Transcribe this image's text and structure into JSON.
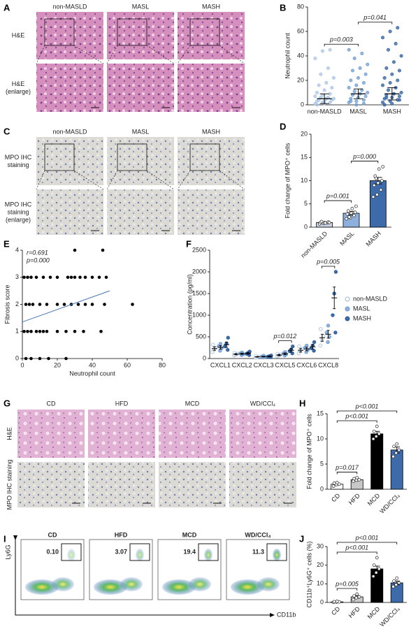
{
  "image_panels": [
    {
      "letter": "A",
      "columns": [
        "non-MASLD",
        "MASL",
        "MASH"
      ],
      "rows": [
        "H&E",
        "H&E (enlarge)"
      ]
    },
    {
      "letter": "C",
      "columns": [
        "non-MASLD",
        "MASL",
        "MASH"
      ],
      "rows": [
        "MPO IHC staining",
        "MPO IHC staining (enlarge)"
      ]
    },
    {
      "letter": "G",
      "columns": [
        "CD",
        "HFD",
        "MCD",
        "WD/CCl₄"
      ],
      "rows": [
        "H&E",
        "MPO IHC staining"
      ]
    },
    {
      "letter": "I",
      "columns": [
        "CD",
        "HFD",
        "MCD",
        "WD/CCl₄"
      ],
      "gate_values": [
        {
          "value": 0.1,
          "label": "0.10"
        },
        3.07,
        19.4,
        11.3
      ],
      "ylabel": "Ly6G",
      "xlabel": "CD11b"
    }
  ],
  "chart_data": [
    {
      "panel": "B",
      "type": "strip",
      "ylabel": "Neutrophil count",
      "categories": [
        "non-MASLD",
        "MASL",
        "MASH"
      ],
      "colors": [
        "#a9c4e4",
        "#6d9bd1",
        "#2f5f9f"
      ],
      "values": [
        5,
        9,
        9
      ],
      "errors": [
        4,
        4,
        5
      ],
      "points": [
        [
          1,
          2,
          2,
          3,
          3,
          4,
          4,
          5,
          5,
          6,
          6,
          7,
          8,
          9,
          10,
          12,
          14,
          16,
          18,
          22,
          25,
          30,
          38,
          44,
          45,
          0,
          1
        ],
        [
          2,
          3,
          4,
          5,
          6,
          7,
          8,
          9,
          10,
          11,
          12,
          14,
          16,
          18,
          20,
          22,
          25,
          28,
          30,
          33,
          38,
          42,
          45,
          0,
          1,
          3
        ],
        [
          2,
          3,
          4,
          5,
          6,
          7,
          8,
          9,
          10,
          12,
          14,
          16,
          18,
          20,
          22,
          25,
          28,
          30,
          35,
          40,
          45,
          50,
          55,
          60,
          63,
          0,
          1,
          4,
          6
        ]
      ],
      "ylim": [
        0,
        80
      ],
      "yticks": [
        0,
        20,
        40,
        60,
        80
      ],
      "comparisons": [
        {
          "pair": [
            0,
            1
          ],
          "label": "p=0.003"
        },
        {
          "pair": [
            1,
            2
          ],
          "label": "p=0.041"
        }
      ]
    },
    {
      "panel": "D",
      "type": "bar",
      "ylabel": "Fold change of MPO⁺ cells",
      "categories": [
        "non-MASLD",
        "MASL",
        "MASH"
      ],
      "colors": [
        "#c9d3e2",
        "#8eb0dc",
        "#3d6aa8"
      ],
      "values": [
        1.0,
        3.0,
        10.0
      ],
      "errors": [
        0.1,
        0.4,
        0.7
      ],
      "points": [
        [
          0.7,
          0.8,
          0.9,
          1.0,
          1.0,
          1.1,
          1.2,
          0.9,
          1.0
        ],
        [
          1.8,
          2.0,
          2.5,
          2.8,
          3.0,
          3.2,
          3.5,
          4.0,
          4.5,
          2.2
        ],
        [
          6.5,
          7.0,
          8.0,
          9.0,
          9.5,
          10.0,
          11.0,
          12.5,
          13.0,
          10.5
        ]
      ],
      "ylim": [
        0,
        20
      ],
      "yticks": [
        0,
        5,
        10,
        15,
        20
      ],
      "comparisons": [
        {
          "pair": [
            0,
            1
          ],
          "label": "p=0.001"
        },
        {
          "pair": [
            1,
            2
          ],
          "label": "p=0.000"
        }
      ]
    },
    {
      "panel": "E",
      "type": "scatter",
      "ylabel": "Fibrosis score",
      "xlabel": "Neutrophil count",
      "annotations": [
        "r=0.691",
        "p=0.000"
      ],
      "x": [
        2,
        5,
        10,
        15,
        25,
        1,
        3,
        5,
        8,
        10,
        12,
        14,
        20,
        25,
        30,
        35,
        45,
        2,
        4,
        6,
        10,
        14,
        20,
        24,
        28,
        32,
        36,
        40,
        47,
        63,
        1,
        3,
        5,
        8,
        12,
        16,
        20,
        26,
        28,
        30,
        33,
        36,
        40,
        44,
        48,
        30,
        46
      ],
      "y": [
        0,
        0,
        0,
        0,
        0,
        1,
        1,
        1,
        1,
        1,
        1,
        1,
        1,
        1,
        1,
        1,
        1,
        2,
        2,
        2,
        2,
        2,
        2,
        2,
        2,
        2,
        2,
        2,
        2,
        2,
        3,
        3,
        3,
        3,
        3,
        3,
        3,
        3,
        3,
        3,
        3,
        3,
        3,
        3,
        3,
        4,
        4
      ],
      "trendline": {
        "x": [
          0,
          50
        ],
        "y": [
          1.35,
          2.5
        ]
      },
      "trend_color": "#4a78b8",
      "xlim": [
        0,
        80
      ],
      "xticks": [
        0,
        20,
        40,
        60,
        80
      ],
      "ylim": [
        0,
        4
      ],
      "yticks": [
        0,
        1,
        2,
        3,
        4
      ]
    },
    {
      "panel": "F",
      "type": "strip",
      "ylabel": "Concentration (pg/ml)",
      "categories": [
        "CXCL1",
        "CXCL2",
        "CXCL3",
        "CXCL5",
        "CXCL6",
        "CXCL8"
      ],
      "legend": "right",
      "series": [
        {
          "name": "non-MASLD",
          "color": "#ffffff",
          "edge": "#9bb8de",
          "values": [
            230,
            100,
            40,
            80,
            190,
            480
          ],
          "errors": [
            40,
            15,
            8,
            15,
            40,
            80
          ],
          "points": [
            [
              150,
              200,
              250,
              320
            ],
            [
              70,
              90,
              110,
              130
            ],
            [
              20,
              35,
              45,
              60
            ],
            [
              50,
              70,
              90,
              110
            ],
            [
              120,
              170,
              220,
              280
            ],
            [
              300,
              420,
              520,
              680
            ]
          ]
        },
        {
          "name": "MASL",
          "color": "#8eb0dc",
          "edge": "#6d9bd1",
          "values": [
            260,
            110,
            45,
            110,
            220,
            560
          ],
          "errors": [
            40,
            15,
            8,
            20,
            40,
            90
          ],
          "points": [
            [
              180,
              240,
              290,
              340
            ],
            [
              80,
              100,
              120,
              140
            ],
            [
              25,
              40,
              50,
              65
            ],
            [
              70,
              100,
              120,
              150
            ],
            [
              150,
              200,
              250,
              300
            ],
            [
              380,
              500,
              600,
              760
            ]
          ]
        },
        {
          "name": "MASH",
          "color": "#3d6aa8",
          "edge": "#2f5f9f",
          "values": [
            320,
            120,
            50,
            190,
            270,
            1400
          ],
          "errors": [
            60,
            20,
            10,
            40,
            50,
            250
          ],
          "points": [
            [
              200,
              280,
              350,
              480
            ],
            [
              80,
              110,
              130,
              160
            ],
            [
              30,
              45,
              55,
              70
            ],
            [
              120,
              170,
              210,
              280
            ],
            [
              180,
              240,
              300,
              380
            ],
            [
              600,
              1000,
              1500,
              2000
            ]
          ]
        }
      ],
      "ylim": [
        0,
        2500
      ],
      "yticks": [
        0,
        500,
        1000,
        1500,
        2000,
        2500
      ],
      "comparisons": [
        {
          "category": 3,
          "label": "p=0.012"
        },
        {
          "category": 5,
          "label": "p=0.005"
        }
      ]
    },
    {
      "panel": "H",
      "type": "bar",
      "ylabel": "Fold change of MPO⁺ cells",
      "categories": [
        "CD",
        "HFD",
        "MCD",
        "WD/CCl₄"
      ],
      "colors": [
        "#ffffff",
        "#c8c8c8",
        "#000000",
        "#3d6aa8"
      ],
      "values": [
        1.0,
        1.9,
        11.0,
        7.8
      ],
      "errors": [
        0.2,
        0.2,
        0.5,
        0.6
      ],
      "points": [
        [
          0.6,
          0.9,
          1.0,
          1.2,
          1.3
        ],
        [
          1.6,
          1.8,
          1.9,
          2.1,
          2.3
        ],
        [
          10.0,
          10.5,
          11.0,
          11.5,
          12.5
        ],
        [
          6.5,
          7.2,
          7.8,
          8.5,
          9.0
        ]
      ],
      "ylim": [
        0,
        15
      ],
      "yticks": [
        0,
        5,
        10,
        15
      ],
      "comparisons": [
        {
          "pair": [
            0,
            1
          ],
          "label": "p=0.017"
        },
        {
          "pair": [
            0,
            2
          ],
          "label": "p<0.001"
        },
        {
          "pair": [
            0,
            3
          ],
          "label": "p<0.001"
        }
      ]
    },
    {
      "panel": "J",
      "type": "bar",
      "ylabel": "CD11b⁺Ly6G⁺ cells (%)",
      "categories": [
        "CD",
        "HFD",
        "MCD",
        "WD/CCl₄"
      ],
      "colors": [
        "#ffffff",
        "#c8c8c8",
        "#000000",
        "#3d6aa8"
      ],
      "values": [
        0.3,
        3.0,
        18.0,
        10.5
      ],
      "errors": [
        0.2,
        0.7,
        1.5,
        1.0
      ],
      "points": [
        [
          0.1,
          0.2,
          0.3,
          0.4,
          0.6
        ],
        [
          1.5,
          2.5,
          3.0,
          3.5,
          4.5
        ],
        [
          14,
          16,
          18,
          20,
          24
        ],
        [
          8.5,
          9.5,
          10.5,
          11.5,
          13
        ]
      ],
      "ylim": [
        0,
        30
      ],
      "yticks": [
        0,
        10,
        20,
        30
      ],
      "comparisons": [
        {
          "pair": [
            0,
            1
          ],
          "label": "p=0.005"
        },
        {
          "pair": [
            0,
            2
          ],
          "label": "p<0.001"
        },
        {
          "pair": [
            0,
            3
          ],
          "label": "p<0.001"
        }
      ]
    }
  ]
}
